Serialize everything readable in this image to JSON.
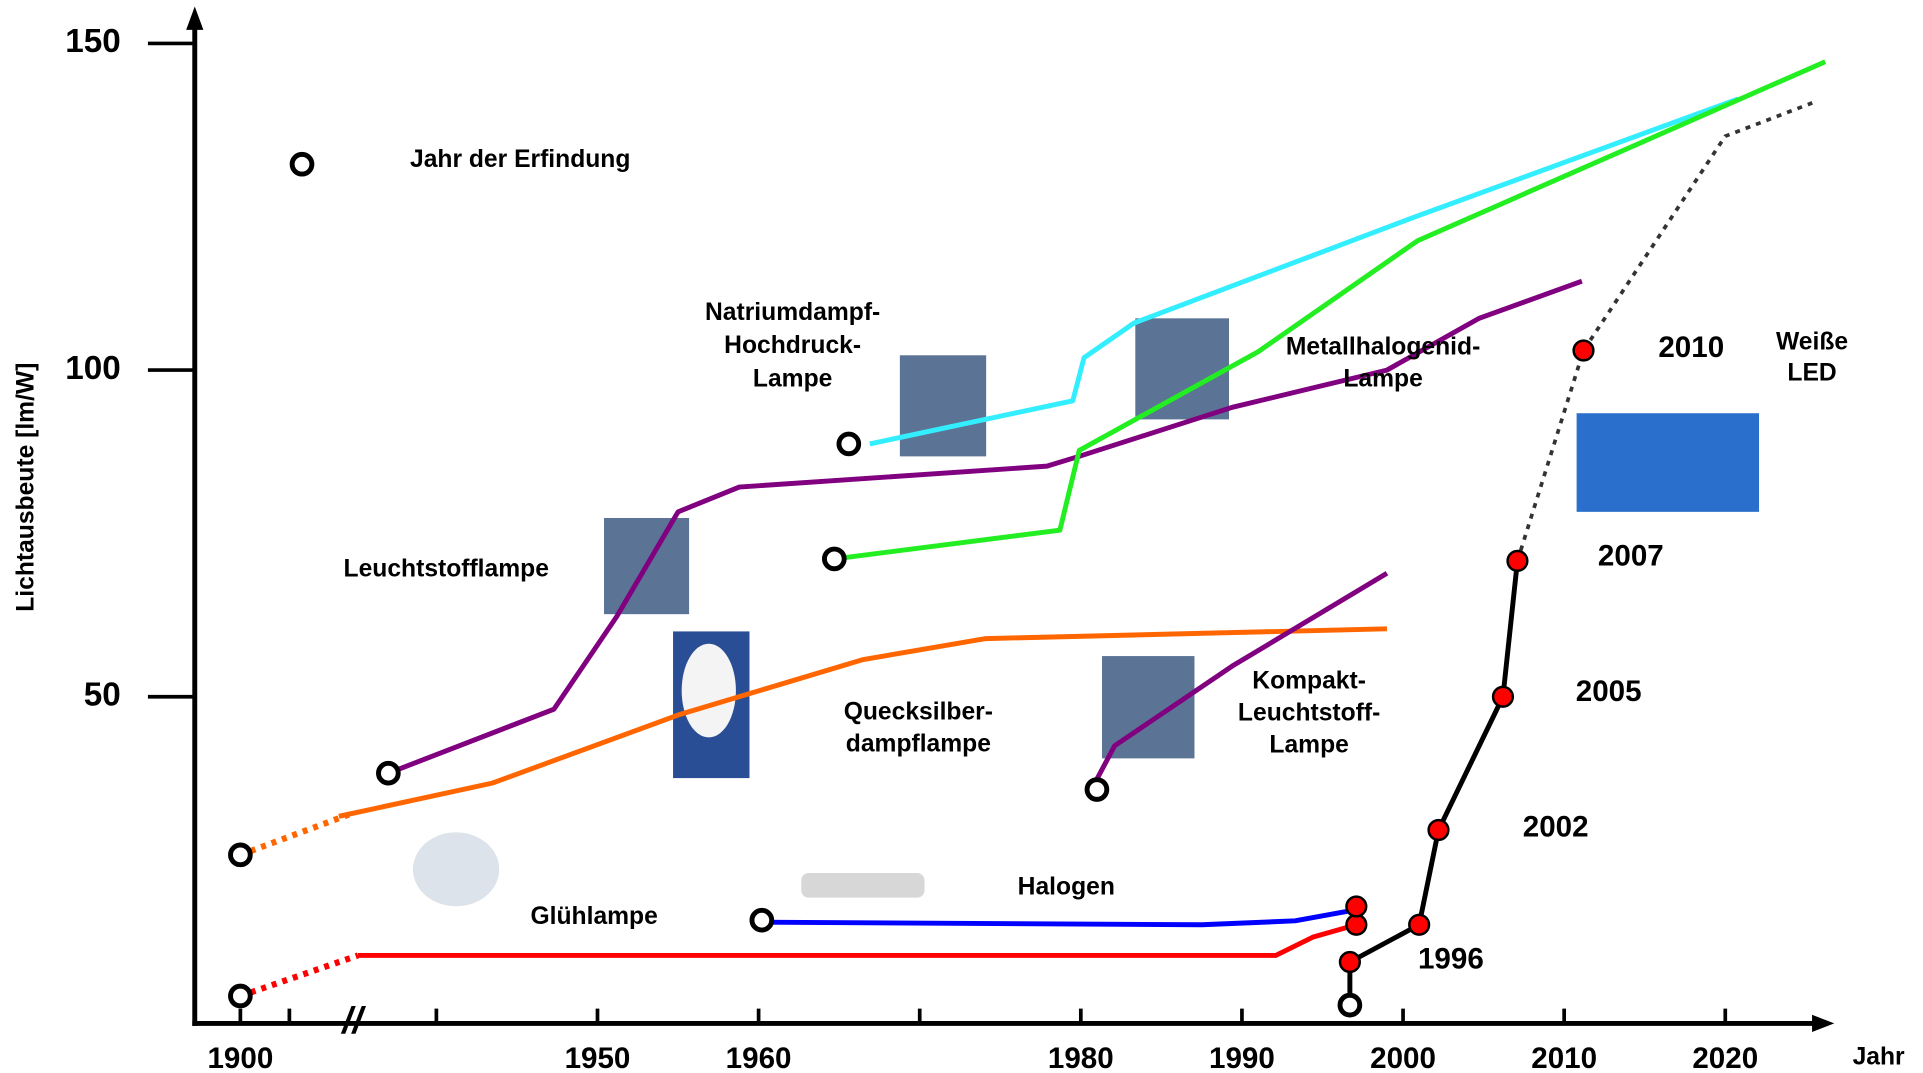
{
  "chart_data": {
    "type": "line",
    "ylabel": "Lichtausbeute [lm/W]",
    "xlabel": "Jahr",
    "axis_break_label": "//",
    "ylim": [
      0,
      150
    ],
    "yticks": [
      50,
      100,
      150
    ],
    "xticks": [
      1900,
      {
        "value": 1910,
        "label": null
      },
      {
        "value": 1940,
        "label": null
      },
      1950,
      1960,
      {
        "value": 1970,
        "label": null
      },
      1980,
      1990,
      2000,
      2010,
      2020
    ],
    "series": [
      {
        "color": "#ff0000",
        "style": "dotted",
        "x": [
          1900,
          1924
        ],
        "values": [
          4.2,
          10.4
        ]
      },
      {
        "name": [
          "Glühlampe"
        ],
        "color": "#ff0000",
        "x": [
          1924,
          1992.1,
          1994.4,
          1997.1
        ],
        "values": [
          10.4,
          10.4,
          13.2,
          15.1
        ]
      },
      {
        "name": [
          "Halogen"
        ],
        "color": "#0000ff",
        "x": [
          1960,
          1987.5,
          1993.3,
          1997.1
        ],
        "values": [
          15.5,
          15.1,
          15.7,
          17.4
        ]
      },
      {
        "color": "#ff6600",
        "style": "dotted",
        "x": [
          1900,
          1922.6
        ],
        "values": [
          25.8,
          32.1
        ]
      },
      {
        "name": [
          "Quecksilber-",
          "dampflampe"
        ],
        "color": "#ff6600",
        "x": [
          1920.1,
          1943.5,
          1955,
          1966.5,
          1974.1,
          1999
        ],
        "values": [
          31.7,
          36.8,
          47.2,
          55.7,
          58.9,
          60.4
        ]
      },
      {
        "name": [
          "Leuchtstofflampe"
        ],
        "color": "#800080",
        "x": [
          1930.2,
          1947.3,
          1951.2,
          1955,
          1958.8,
          1977.9,
          1979.9,
          1989.4,
          1999,
          2004.7,
          2011.1
        ],
        "values": [
          38.3,
          48.1,
          62.3,
          78.3,
          82.1,
          85.3,
          86.8,
          94.3,
          100,
          107.9,
          113.6
        ]
      },
      {
        "name": [
          "Kompakt-",
          "Leuchtstoff-",
          "Lampe"
        ],
        "color": "#800080",
        "x": [
          1981,
          1982.1,
          1989.4,
          1999
        ],
        "values": [
          37.4,
          42.5,
          54.7,
          68.9
        ]
      },
      {
        "name": [
          "Natriumdampf-",
          "Hochdruck-",
          "Lampe"
        ],
        "color": "#33eeff",
        "x": [
          1966.9,
          1979.5,
          1980.2,
          1983.3,
          2000.9,
          2020.8
        ],
        "values": [
          88.7,
          95.3,
          101.9,
          107.2,
          123.6,
          141.5
        ]
      },
      {
        "name": [
          "Metallhalogenid-",
          "Lampe"
        ],
        "color": "#22ee22",
        "x": [
          1964.7,
          1978.7,
          1979.9,
          1991,
          2000.9,
          2026.2
        ],
        "values": [
          71.1,
          75.5,
          87.7,
          102.8,
          119.8,
          147.2
        ]
      },
      {
        "name": [
          "Weiße",
          "LED"
        ],
        "color": "#000000",
        "x": [
          1996.7,
          1996.7,
          2001,
          2002.2,
          2006.2,
          2007.1
        ],
        "values": [
          2.8,
          9.4,
          15.1,
          29.6,
          50,
          70.8
        ]
      },
      {
        "color": "#333333",
        "style": "dotted",
        "x": [
          2007.1,
          2011.2,
          2020,
          2025.4
        ],
        "values": [
          70.8,
          103,
          135.8,
          140.9
        ]
      }
    ],
    "markers": [
      {
        "name": "Jahr der Erfindung",
        "style": "open",
        "x": [
          1900,
          1900,
          1930.2,
          1960.2,
          1964.7,
          1965.6,
          1981,
          1996.7
        ],
        "values": [
          4.2,
          25.8,
          38.3,
          15.8,
          71.1,
          88.7,
          35.8,
          2.8
        ]
      },
      {
        "style": "filled",
        "color": "#ff0000",
        "x": [
          1996.7,
          1997.1,
          1997.1,
          2001,
          2002.2,
          2006.2,
          2007.1,
          2011.2
        ],
        "values": [
          9.4,
          15.1,
          17.9,
          15.1,
          29.6,
          50,
          70.8,
          103
        ]
      }
    ],
    "annotations": [
      "1996",
      "2002",
      "2005",
      "2007",
      "2010"
    ]
  }
}
